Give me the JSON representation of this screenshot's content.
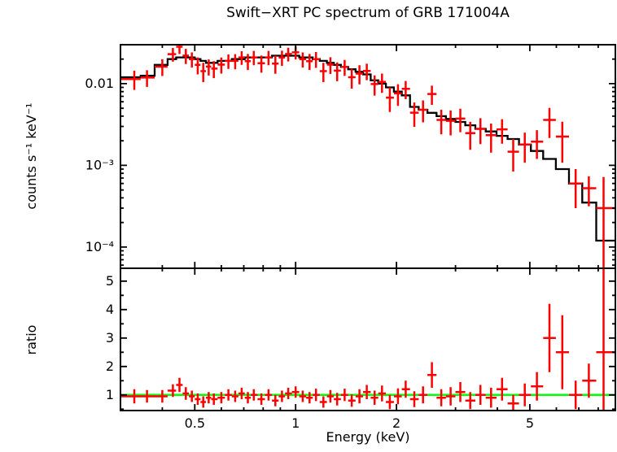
{
  "title": "Swift−XRT PC spectrum of GRB 171004A",
  "chart_data": {
    "type": "scatter",
    "title": "Swift−XRT PC spectrum of GRB 171004A",
    "xlabel": "Energy (keV)",
    "xscale": "log",
    "xlim": [
      0.3,
      9.0
    ],
    "xticks": [
      {
        "value": 0.5,
        "label": "0.5"
      },
      {
        "value": 1,
        "label": "1"
      },
      {
        "value": 2,
        "label": "2"
      },
      {
        "value": 5,
        "label": "5"
      }
    ],
    "colors": {
      "data": "#ff0000",
      "model": "#000000",
      "reference_line": "#00ff00",
      "frame": "#000000"
    },
    "legend": "none",
    "grid": false,
    "panels": [
      {
        "name": "spectrum",
        "ylabel": "counts s⁻¹ keV⁻¹",
        "yscale": "log",
        "ylim": [
          5.5e-05,
          0.03
        ],
        "yticks": [
          {
            "value": 0.01,
            "label": "0.01"
          },
          {
            "value": 0.001,
            "label": "10⁻³"
          },
          {
            "value": 0.0001,
            "label": "10⁻⁴"
          }
        ]
      },
      {
        "name": "ratio",
        "ylabel": "ratio",
        "yscale": "linear",
        "ylim": [
          0.45,
          5.45
        ],
        "yticks": [
          {
            "value": 1,
            "label": "1"
          },
          {
            "value": 2,
            "label": "2"
          },
          {
            "value": 3,
            "label": "3"
          },
          {
            "value": 4,
            "label": "4"
          },
          {
            "value": 5,
            "label": "5"
          }
        ],
        "reference_line": {
          "y": 1.0,
          "color": "#00ff00"
        }
      }
    ],
    "series": {
      "definition": "data_counts = model_counts × ratio; data_counts_err = model_counts × ratio_err; x error bars span spectral bin widths (geometric midpoints between adjacent energies)",
      "energy_keV": [
        0.33,
        0.36,
        0.4,
        0.43,
        0.45,
        0.47,
        0.49,
        0.51,
        0.53,
        0.55,
        0.57,
        0.6,
        0.63,
        0.66,
        0.69,
        0.72,
        0.75,
        0.79,
        0.83,
        0.87,
        0.91,
        0.95,
        1.0,
        1.05,
        1.1,
        1.15,
        1.21,
        1.27,
        1.33,
        1.4,
        1.47,
        1.55,
        1.63,
        1.72,
        1.81,
        1.91,
        2.02,
        2.13,
        2.26,
        2.4,
        2.55,
        2.72,
        2.9,
        3.1,
        3.32,
        3.56,
        3.83,
        4.13,
        4.46,
        4.83,
        5.25,
        5.72,
        6.25,
        6.85,
        7.5,
        8.3
      ],
      "model_counts": [
        0.012,
        0.0125,
        0.017,
        0.02,
        0.021,
        0.021,
        0.021,
        0.02,
        0.019,
        0.018,
        0.018,
        0.019,
        0.019,
        0.02,
        0.02,
        0.021,
        0.021,
        0.021,
        0.021,
        0.022,
        0.022,
        0.022,
        0.022,
        0.021,
        0.021,
        0.02,
        0.019,
        0.018,
        0.017,
        0.016,
        0.015,
        0.014,
        0.013,
        0.011,
        0.01,
        0.009,
        0.008,
        0.0072,
        0.0052,
        0.0048,
        0.0044,
        0.004,
        0.0037,
        0.0034,
        0.0031,
        0.0028,
        0.0026,
        0.0023,
        0.0021,
        0.0018,
        0.0015,
        0.0012,
        0.0009,
        0.0006,
        0.00035,
        0.00012
      ],
      "ratio": [
        0.95,
        0.95,
        0.95,
        1.15,
        1.35,
        1.05,
        0.95,
        0.85,
        0.75,
        0.9,
        0.85,
        0.9,
        1.0,
        0.95,
        1.05,
        0.9,
        1.0,
        0.85,
        1.0,
        0.8,
        0.95,
        1.05,
        1.1,
        0.95,
        0.9,
        1.0,
        0.75,
        0.95,
        0.85,
        1.0,
        0.8,
        0.95,
        1.1,
        0.9,
        1.05,
        0.75,
        0.95,
        1.2,
        0.85,
        1.0,
        1.7,
        0.9,
        0.95,
        1.1,
        0.8,
        1.0,
        0.9,
        1.2,
        0.7,
        1.0,
        1.3,
        3.0,
        2.5,
        1.0,
        1.5,
        2.5
      ],
      "ratio_err": [
        0.25,
        0.22,
        0.22,
        0.22,
        0.25,
        0.22,
        0.2,
        0.2,
        0.2,
        0.2,
        0.2,
        0.2,
        0.2,
        0.2,
        0.2,
        0.2,
        0.2,
        0.2,
        0.2,
        0.2,
        0.2,
        0.2,
        0.2,
        0.2,
        0.2,
        0.22,
        0.2,
        0.22,
        0.22,
        0.22,
        0.22,
        0.25,
        0.25,
        0.25,
        0.28,
        0.25,
        0.28,
        0.3,
        0.28,
        0.3,
        0.45,
        0.3,
        0.32,
        0.35,
        0.3,
        0.35,
        0.35,
        0.4,
        0.3,
        0.4,
        0.5,
        1.2,
        1.3,
        0.5,
        0.6,
        3.5
      ]
    }
  }
}
